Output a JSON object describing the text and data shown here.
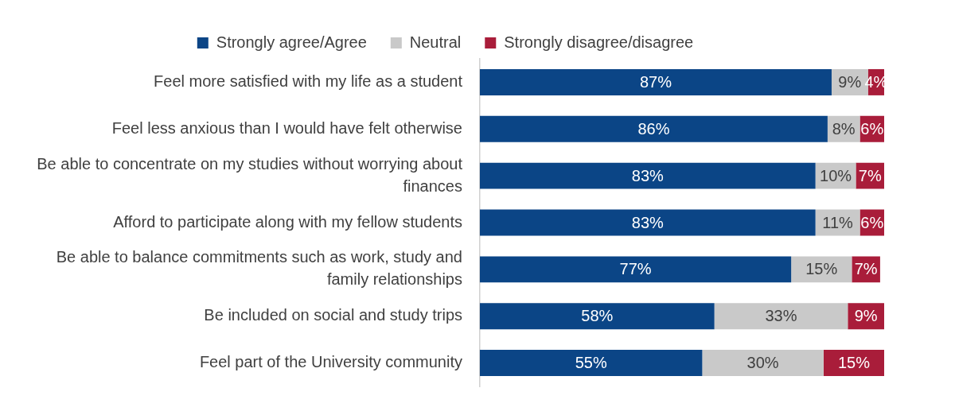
{
  "chart_data": {
    "type": "bar",
    "orientation": "horizontal",
    "stacked": true,
    "legend": "top",
    "grid": false,
    "tick_labels": "y",
    "xlim": [
      0,
      100
    ],
    "categories": [
      "Feel more satisfied with my life as a student",
      "Feel less anxious than I would have felt otherwise",
      "Be able to concentrate on my studies without worrying about finances",
      "Afford to participate along with my fellow students",
      "Be able to balance commitments such as work, study and family relationships",
      "Be included on social and study trips",
      "Feel part of the University community"
    ],
    "series": [
      {
        "name": "Strongly agree/Agree",
        "color": "#0b4586",
        "values": [
          87,
          86,
          83,
          83,
          77,
          58,
          55
        ],
        "value_labels": [
          "87%",
          "86%",
          "83%",
          "83%",
          "77%",
          "58%",
          "55%"
        ]
      },
      {
        "name": "Neutral",
        "color": "#c9c9c9",
        "values": [
          9,
          8,
          10,
          11,
          15,
          33,
          30
        ],
        "value_labels": [
          "9%",
          "8%",
          "10%",
          "11%",
          "15%",
          "33%",
          "30%"
        ]
      },
      {
        "name": "Strongly disagree/disagree",
        "color": "#a91d3a",
        "values": [
          4,
          6,
          7,
          6,
          7,
          9,
          15
        ],
        "value_labels": [
          "4%",
          "6%",
          "7%",
          "6%",
          "7%",
          "9%",
          "15%"
        ]
      }
    ]
  }
}
